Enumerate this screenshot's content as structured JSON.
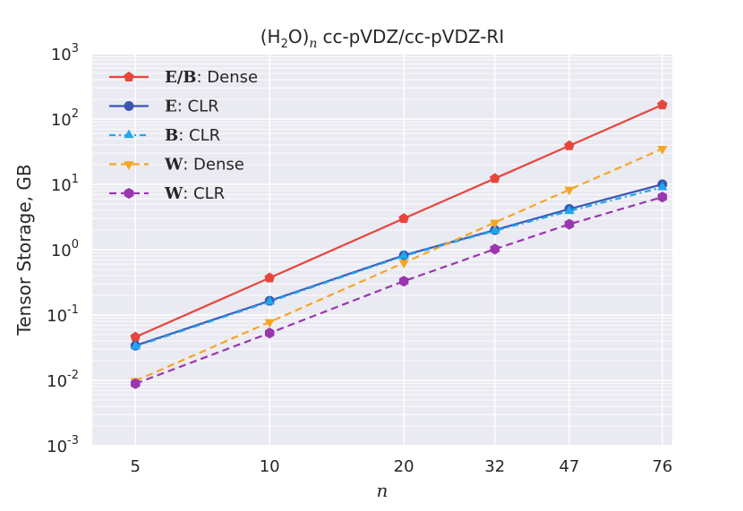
{
  "chart_data": {
    "type": "line",
    "title": "(H2O)n cc-pVDZ/cc-pVDZ-RI",
    "title_parts": {
      "open": "(H",
      "sub2": "2",
      "mid": "O)",
      "subn": "n",
      "rest": "cc-pVDZ/cc-pVDZ-RI"
    },
    "xlabel": "n",
    "ylabel": "Tensor Storage, GB",
    "xscale": "log",
    "yscale": "log",
    "xlim": [
      4.0,
      80.0
    ],
    "ylim": [
      0.001,
      1000
    ],
    "x_ticks": [
      5,
      10,
      20,
      32,
      47,
      76
    ],
    "x_tick_labels": [
      "5",
      "10",
      "20",
      "32",
      "47",
      "76"
    ],
    "y_ticks": [
      0.001,
      0.01,
      0.1,
      1,
      10,
      100,
      1000
    ],
    "y_tick_labels": [
      {
        "base": "10",
        "exp": "-3"
      },
      {
        "base": "10",
        "exp": "-2"
      },
      {
        "base": "10",
        "exp": "-1"
      },
      {
        "base": "10",
        "exp": "0"
      },
      {
        "base": "10",
        "exp": "1"
      },
      {
        "base": "10",
        "exp": "2"
      },
      {
        "base": "10",
        "exp": "3"
      }
    ],
    "grid": true,
    "legend_position": "top-left",
    "x": [
      5,
      10,
      20,
      32,
      47,
      76
    ],
    "series": [
      {
        "name": "E/B: Dense",
        "legend_bold": "E/B",
        "legend_rest": ": Dense",
        "color": "#e8453c",
        "dash": "solid",
        "marker": "pentagon",
        "values": [
          0.046,
          0.37,
          3.0,
          12.3,
          39.0,
          165
        ]
      },
      {
        "name": "E: CLR",
        "legend_bold": "E",
        "legend_rest": ": CLR",
        "color": "#3a56b4",
        "dash": "solid",
        "marker": "circle",
        "values": [
          0.034,
          0.165,
          0.82,
          2.0,
          4.2,
          10.0
        ]
      },
      {
        "name": "B: CLR",
        "legend_bold": "B",
        "legend_rest": ": CLR",
        "color": "#1fa8ec",
        "dash": "dashdot",
        "marker": "triangle-up",
        "values": [
          0.033,
          0.16,
          0.8,
          1.95,
          3.9,
          9.0
        ]
      },
      {
        "name": "W: Dense",
        "legend_bold": "W",
        "legend_rest": ": Dense",
        "color": "#f5a623",
        "dash": "dashed",
        "marker": "triangle-down",
        "values": [
          0.0098,
          0.078,
          0.63,
          2.6,
          8.3,
          35.0
        ]
      },
      {
        "name": "W: CLR",
        "legend_bold": "W",
        "legend_rest": ": CLR",
        "color": "#9b36b0",
        "dash": "dashed",
        "marker": "hexagon",
        "values": [
          0.0089,
          0.053,
          0.33,
          1.02,
          2.45,
          6.4
        ]
      }
    ]
  }
}
